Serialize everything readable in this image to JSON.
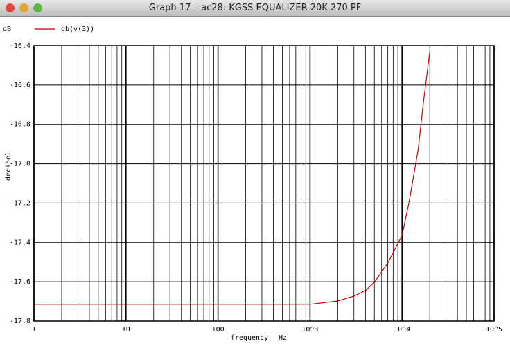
{
  "chart_data": {
    "type": "line",
    "title": "Graph 17 – ac28: KGSS EQUALIZER 20K 270 PF",
    "y_unit": "dB",
    "ylabel": "decibel",
    "xlabel": "frequency",
    "x_unit": "Hz",
    "log_x": true,
    "grid": true,
    "legend": "top-left",
    "x": [
      1,
      10,
      100,
      1000,
      1500,
      2000,
      3000,
      4000,
      5000,
      7000,
      10000,
      12000,
      15000,
      17000,
      20000
    ],
    "series": [
      {
        "name": "db(v(3))",
        "color": "#c80000",
        "values": [
          -17.715,
          -17.715,
          -17.715,
          -17.715,
          -17.705,
          -17.698,
          -17.673,
          -17.645,
          -17.603,
          -17.505,
          -17.364,
          -17.188,
          -16.924,
          -16.695,
          -16.432
        ]
      }
    ],
    "xlim": [
      1,
      100000
    ],
    "xticks": [
      1,
      10,
      100,
      {
        "value": 1000,
        "label": "10^3"
      },
      {
        "value": 10000,
        "label": "10^4"
      },
      {
        "value": 100000,
        "label": "10^5"
      }
    ],
    "ylim": [
      -17.8,
      -16.4
    ],
    "yticks": [
      -16.4,
      -16.6,
      -16.8,
      {
        "value": -17.0,
        "label": "-17.0"
      },
      -17.2,
      -17.4,
      -17.6,
      -17.8
    ]
  }
}
